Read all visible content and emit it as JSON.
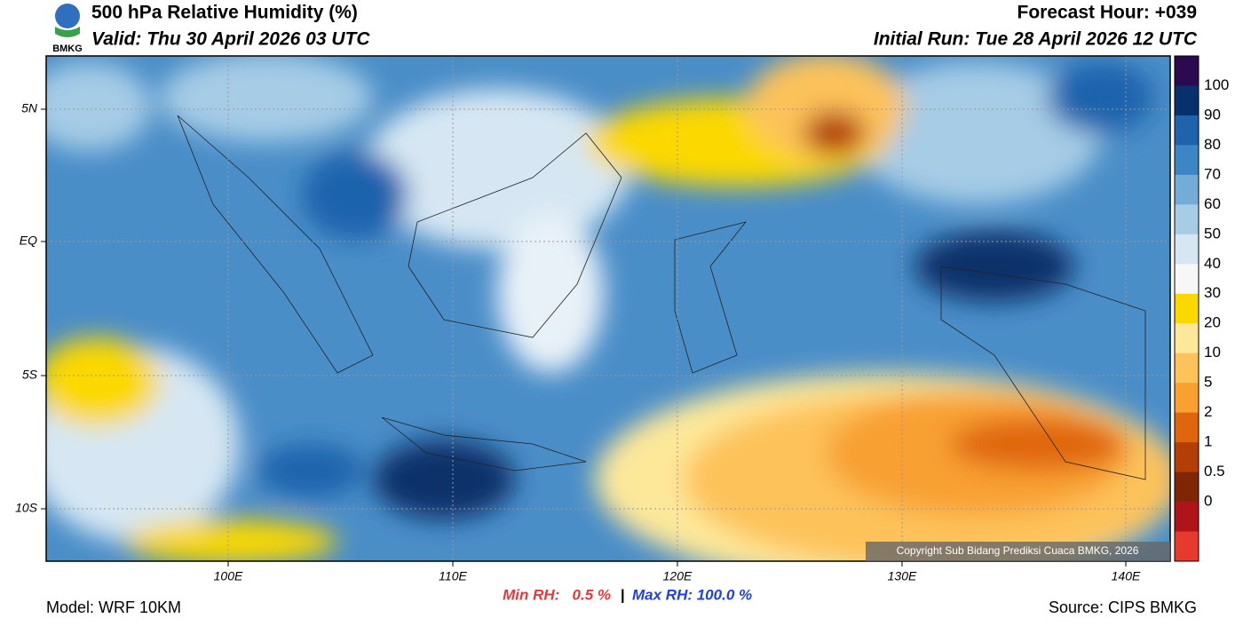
{
  "header": {
    "title": "500 hPa Relative Humidity (%)",
    "valid": "Valid: Thu 30 April 2026 03 UTC",
    "forecast_hour": "Forecast Hour: +039",
    "initial_run": "Initial Run: Tue 28 April 2026 12 UTC",
    "logo": "BMKG"
  },
  "map": {
    "lat_labels": [
      "5N",
      "EQ",
      "5S",
      "10S"
    ],
    "lon_labels": [
      "100E",
      "110E",
      "120E",
      "130E",
      "140E"
    ],
    "copyright": "Copyright Sub Bidang Prediksi Cuaca BMKG, 2026"
  },
  "colorbar": {
    "labels": [
      "100",
      "90",
      "80",
      "70",
      "60",
      "50",
      "40",
      "30",
      "20",
      "10",
      "5",
      "2",
      "1",
      "0.5",
      "0"
    ],
    "colors": [
      "#2b0a4f",
      "#08306b",
      "#1f63ad",
      "#3d86c4",
      "#74acd8",
      "#a6cce6",
      "#d6e7f3",
      "#f7f7f7",
      "#fbd800",
      "#fde89a",
      "#fdc25a",
      "#f8a030",
      "#e0660e",
      "#b33f06",
      "#7f2704",
      "#b0141b",
      "#e8392f"
    ]
  },
  "footer": {
    "min_rh": "Min RH:   0.5 %",
    "separator": "|",
    "max_rh": "Max RH: 100.0 %",
    "model": "Model: WRF 10KM",
    "source": "Source: CIPS BMKG"
  }
}
